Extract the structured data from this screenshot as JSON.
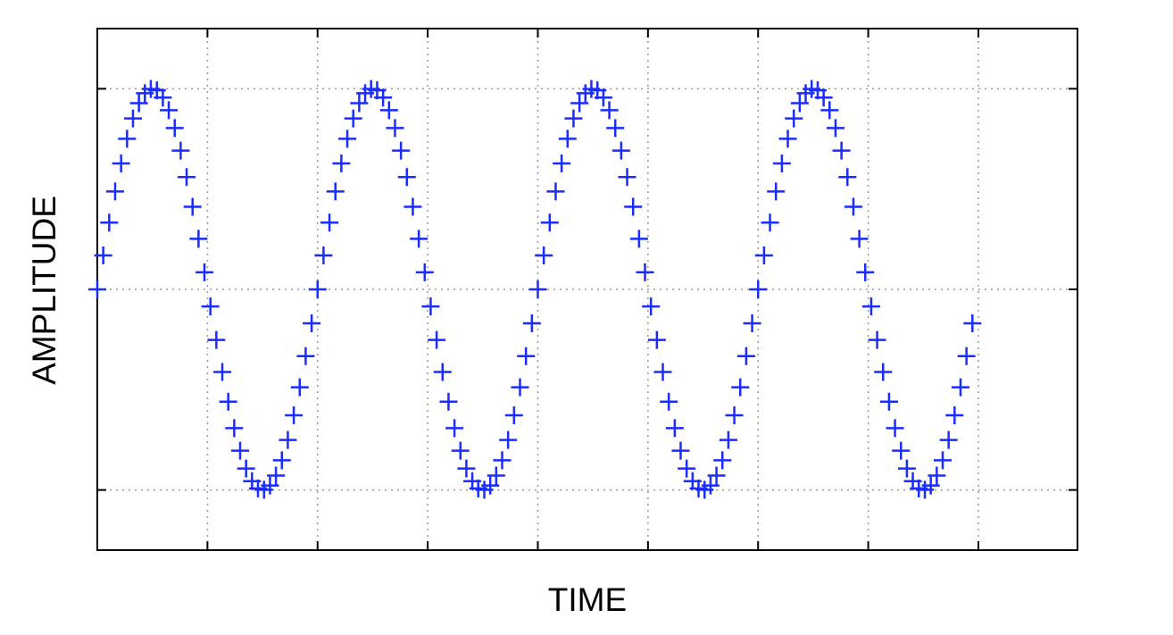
{
  "chart_data": {
    "type": "scatter",
    "x_label": "TIME",
    "y_label": "AMPLITUDE",
    "color": "#1a2cff",
    "marker": "+",
    "grid": true,
    "xlim": [
      0,
      8.9
    ],
    "xticks": [
      1,
      2,
      3,
      4,
      5,
      6,
      7,
      8
    ],
    "ylim": [
      -1.3,
      1.3
    ],
    "yticks": [
      -1,
      0,
      1
    ],
    "x": [
      0,
      0.054,
      0.108,
      0.162,
      0.216,
      0.27,
      0.324,
      0.378,
      0.432,
      0.486,
      0.541,
      0.595,
      0.649,
      0.703,
      0.757,
      0.811,
      0.865,
      0.919,
      0.973,
      1.027,
      1.081,
      1.135,
      1.189,
      1.243,
      1.297,
      1.351,
      1.405,
      1.459,
      1.514,
      1.568,
      1.622,
      1.676,
      1.73,
      1.784,
      1.838,
      1.892,
      1.946,
      2,
      2.054,
      2.108,
      2.162,
      2.216,
      2.27,
      2.324,
      2.378,
      2.432,
      2.486,
      2.541,
      2.595,
      2.649,
      2.703,
      2.757,
      2.811,
      2.865,
      2.919,
      2.973,
      3.027,
      3.081,
      3.135,
      3.189,
      3.243,
      3.297,
      3.351,
      3.405,
      3.459,
      3.514,
      3.568,
      3.622,
      3.676,
      3.73,
      3.784,
      3.838,
      3.892,
      3.946,
      4,
      4.054,
      4.108,
      4.162,
      4.216,
      4.27,
      4.324,
      4.378,
      4.432,
      4.486,
      4.541,
      4.595,
      4.649,
      4.703,
      4.757,
      4.811,
      4.865,
      4.919,
      4.973,
      5.027,
      5.081,
      5.135,
      5.189,
      5.243,
      5.297,
      5.351,
      5.405,
      5.459,
      5.514,
      5.568,
      5.622,
      5.676,
      5.73,
      5.784,
      5.838,
      5.892,
      5.946,
      6,
      6.054,
      6.108,
      6.162,
      6.216,
      6.27,
      6.324,
      6.378,
      6.432,
      6.486,
      6.541,
      6.595,
      6.649,
      6.703,
      6.757,
      6.811,
      6.865,
      6.919,
      6.973,
      7.027,
      7.081,
      7.135,
      7.189,
      7.243,
      7.297,
      7.351,
      7.405,
      7.459,
      7.514,
      7.568,
      7.622,
      7.676,
      7.73,
      7.784,
      7.838,
      7.892,
      7.946
    ],
    "values": [
      0,
      0.169,
      0.333,
      0.488,
      0.628,
      0.751,
      0.852,
      0.928,
      0.978,
      0.999,
      0.992,
      0.956,
      0.893,
      0.804,
      0.692,
      0.56,
      0.412,
      0.252,
      0.085,
      -0.085,
      -0.252,
      -0.412,
      -0.56,
      -0.692,
      -0.804,
      -0.893,
      -0.956,
      -0.992,
      -0.999,
      -0.978,
      -0.928,
      -0.852,
      -0.751,
      -0.628,
      -0.488,
      -0.333,
      -0.169,
      0,
      0.169,
      0.333,
      0.488,
      0.628,
      0.751,
      0.852,
      0.928,
      0.978,
      0.999,
      0.992,
      0.956,
      0.893,
      0.804,
      0.692,
      0.56,
      0.412,
      0.252,
      0.085,
      -0.085,
      -0.252,
      -0.412,
      -0.56,
      -0.692,
      -0.804,
      -0.893,
      -0.956,
      -0.992,
      -0.999,
      -0.978,
      -0.928,
      -0.852,
      -0.751,
      -0.628,
      -0.488,
      -0.333,
      -0.169,
      0,
      0.169,
      0.333,
      0.488,
      0.628,
      0.751,
      0.852,
      0.928,
      0.978,
      0.999,
      0.992,
      0.956,
      0.893,
      0.804,
      0.692,
      0.56,
      0.412,
      0.252,
      0.085,
      -0.085,
      -0.252,
      -0.412,
      -0.56,
      -0.692,
      -0.804,
      -0.893,
      -0.956,
      -0.992,
      -0.999,
      -0.978,
      -0.928,
      -0.852,
      -0.751,
      -0.628,
      -0.488,
      -0.333,
      -0.169,
      0,
      0.169,
      0.333,
      0.488,
      0.628,
      0.751,
      0.852,
      0.928,
      0.978,
      0.999,
      0.992,
      0.956,
      0.893,
      0.804,
      0.692,
      0.56,
      0.412,
      0.252,
      0.085,
      -0.085,
      -0.252,
      -0.412,
      -0.56,
      -0.692,
      -0.804,
      -0.893,
      -0.956,
      -0.992,
      -0.999,
      -0.978,
      -0.928,
      -0.852,
      -0.751,
      -0.628,
      -0.488,
      -0.333,
      -0.169
    ]
  }
}
